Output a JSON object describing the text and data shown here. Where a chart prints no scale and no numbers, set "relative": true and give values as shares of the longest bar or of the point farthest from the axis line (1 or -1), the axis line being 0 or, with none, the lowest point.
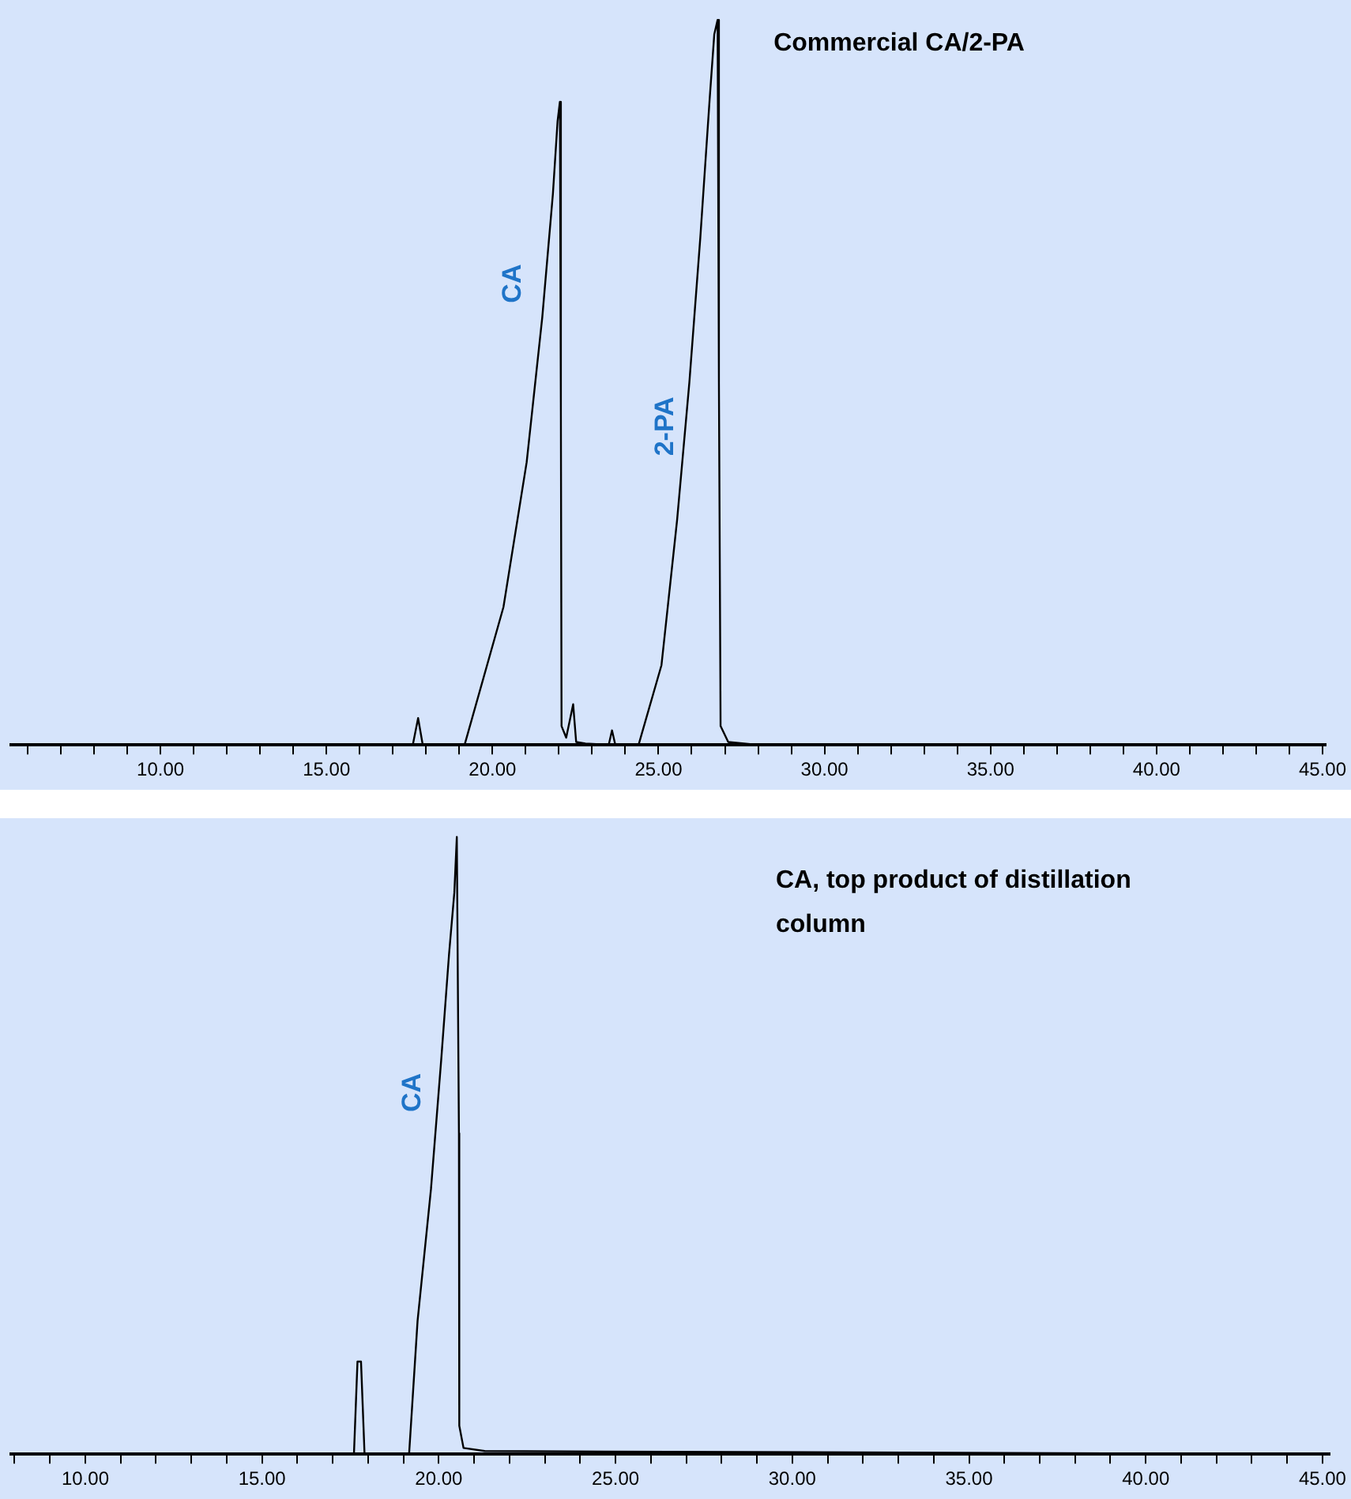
{
  "chart_data": [
    {
      "type": "line",
      "title": "Commercial CA/2-PA",
      "relative": true,
      "color": "#000000",
      "x": [
        5.5,
        16.0,
        17.6,
        17.76,
        17.9,
        19.16,
        20.33,
        21.03,
        21.5,
        21.82,
        21.96,
        22.03,
        22.06,
        22.08,
        22.22,
        22.43,
        22.52,
        22.8,
        23.5,
        23.6,
        23.7,
        24.4,
        24.44,
        25.09,
        25.56,
        25.93,
        26.26,
        26.54,
        26.68,
        26.78,
        26.82,
        26.87,
        27.1,
        28.0,
        45.1
      ],
      "values": [
        0,
        0,
        0,
        0.037,
        0,
        0,
        0.19,
        0.39,
        0.59,
        0.76,
        0.86,
        0.887,
        0.46,
        0.026,
        0.01,
        0.056,
        0.004,
        0.002,
        0,
        0.02,
        0,
        0,
        0,
        0.11,
        0.31,
        0.5,
        0.7,
        0.89,
        0.98,
        1,
        0.5,
        0.026,
        0.004,
        0,
        0
      ],
      "xlim": [
        5.5,
        45.1
      ],
      "xticks": [
        {
          "value": 6,
          "label": null
        },
        {
          "value": 7,
          "label": null
        },
        {
          "value": 8,
          "label": null
        },
        {
          "value": 9,
          "label": null
        },
        {
          "value": 10,
          "label": "10.00"
        },
        {
          "value": 11,
          "label": null
        },
        {
          "value": 12,
          "label": null
        },
        {
          "value": 13,
          "label": null
        },
        {
          "value": 14,
          "label": null
        },
        {
          "value": 15,
          "label": "15.00"
        },
        {
          "value": 16,
          "label": null
        },
        {
          "value": 17,
          "label": null
        },
        {
          "value": 18,
          "label": null
        },
        {
          "value": 19,
          "label": null
        },
        {
          "value": 20,
          "label": "20.00"
        },
        {
          "value": 21,
          "label": null
        },
        {
          "value": 22,
          "label": null
        },
        {
          "value": 23,
          "label": null
        },
        {
          "value": 24,
          "label": null
        },
        {
          "value": 25,
          "label": "25.00"
        },
        {
          "value": 26,
          "label": null
        },
        {
          "value": 27,
          "label": null
        },
        {
          "value": 28,
          "label": null
        },
        {
          "value": 29,
          "label": null
        },
        {
          "value": 30,
          "label": "30.00"
        },
        {
          "value": 31,
          "label": null
        },
        {
          "value": 32,
          "label": null
        },
        {
          "value": 33,
          "label": null
        },
        {
          "value": 34,
          "label": null
        },
        {
          "value": 35,
          "label": "35.00"
        },
        {
          "value": 36,
          "label": null
        },
        {
          "value": 37,
          "label": null
        },
        {
          "value": 38,
          "label": null
        },
        {
          "value": 39,
          "label": null
        },
        {
          "value": 40,
          "label": "40.00"
        },
        {
          "value": 41,
          "label": null
        },
        {
          "value": 42,
          "label": null
        },
        {
          "value": 43,
          "label": null
        },
        {
          "value": 44,
          "label": null
        },
        {
          "value": 45,
          "label": "45.00"
        }
      ],
      "annotations": [
        "CA",
        "2-PA"
      ]
    },
    {
      "type": "line",
      "title": "CA, top product of distillation column",
      "relative": true,
      "color": "#000000",
      "x": [
        7.9,
        16.5,
        17.6,
        17.7,
        17.8,
        17.9,
        19.16,
        19.4,
        19.78,
        20.07,
        20.29,
        20.44,
        20.51,
        20.57,
        20.58,
        20.7,
        21.3,
        45.2
      ],
      "values": [
        0,
        0,
        0,
        0.15,
        0.15,
        0,
        0,
        0.216,
        0.43,
        0.64,
        0.81,
        0.91,
        1,
        0.52,
        0.046,
        0.01,
        0.005,
        0
      ],
      "xlim": [
        7.9,
        45.2
      ],
      "xticks": [
        {
          "value": 8,
          "label": null
        },
        {
          "value": 9,
          "label": null
        },
        {
          "value": 10,
          "label": "10.00"
        },
        {
          "value": 11,
          "label": null
        },
        {
          "value": 12,
          "label": null
        },
        {
          "value": 13,
          "label": null
        },
        {
          "value": 14,
          "label": null
        },
        {
          "value": 15,
          "label": "15.00"
        },
        {
          "value": 16,
          "label": null
        },
        {
          "value": 17,
          "label": null
        },
        {
          "value": 18,
          "label": null
        },
        {
          "value": 19,
          "label": null
        },
        {
          "value": 20,
          "label": "20.00"
        },
        {
          "value": 21,
          "label": null
        },
        {
          "value": 22,
          "label": null
        },
        {
          "value": 23,
          "label": null
        },
        {
          "value": 24,
          "label": null
        },
        {
          "value": 25,
          "label": "25.00"
        },
        {
          "value": 26,
          "label": null
        },
        {
          "value": 27,
          "label": null
        },
        {
          "value": 28,
          "label": null
        },
        {
          "value": 29,
          "label": null
        },
        {
          "value": 30,
          "label": "30.00"
        },
        {
          "value": 31,
          "label": null
        },
        {
          "value": 32,
          "label": null
        },
        {
          "value": 33,
          "label": null
        },
        {
          "value": 34,
          "label": null
        },
        {
          "value": 35,
          "label": "35.00"
        },
        {
          "value": 36,
          "label": null
        },
        {
          "value": 37,
          "label": null
        },
        {
          "value": 38,
          "label": null
        },
        {
          "value": 39,
          "label": null
        },
        {
          "value": 40,
          "label": "40.00"
        },
        {
          "value": 41,
          "label": null
        },
        {
          "value": 42,
          "label": null
        },
        {
          "value": 43,
          "label": null
        },
        {
          "value": 44,
          "label": null
        },
        {
          "value": 45,
          "label": "45.00"
        }
      ],
      "annotations": [
        "CA"
      ]
    }
  ]
}
